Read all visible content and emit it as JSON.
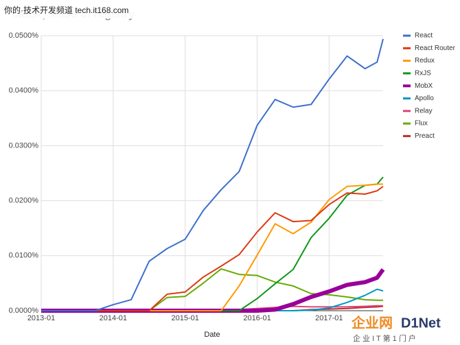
{
  "chart_data": {
    "type": "line",
    "title": "MobX, share of registry",
    "x_label": "Date",
    "watermark": "你的·技术开发频道 tech.it168.com",
    "logo": "企业网",
    "logo_brand": "D1Net",
    "logo_tagline": "企 业 I T 第 1 门 户",
    "x": [
      "2013-01",
      "2013-04",
      "2013-07",
      "2013-10",
      "2014-01",
      "2014-04",
      "2014-07",
      "2014-10",
      "2015-01",
      "2015-04",
      "2015-07",
      "2015-10",
      "2016-01",
      "2016-04",
      "2016-07",
      "2016-10",
      "2017-01",
      "2017-04",
      "2017-07",
      "2017-09",
      "2017-10"
    ],
    "xlim": [
      "2013-01",
      "2017-10"
    ],
    "xticks": [
      "2013-01",
      "2014-01",
      "2015-01",
      "2016-01",
      "2017-01"
    ],
    "ylim": [
      0,
      0.05
    ],
    "yticks": [
      {
        "value": 0,
        "label": "0.0000%"
      },
      {
        "value": 0.01,
        "label": "0.0100%"
      },
      {
        "value": 0.02,
        "label": "0.0200%"
      },
      {
        "value": 0.03,
        "label": "0.0300%"
      },
      {
        "value": 0.04,
        "label": "0.0400%"
      },
      {
        "value": 0.05,
        "label": "0.0500%"
      }
    ],
    "grid": true,
    "legend": "right",
    "series": [
      {
        "name": "React",
        "color": "#3d6fcc",
        "values": [
          0,
          0,
          0,
          0,
          0.0011,
          0.002,
          0.009,
          0.0113,
          0.013,
          0.0182,
          0.022,
          0.0253,
          0.0337,
          0.0384,
          0.037,
          0.0375,
          0.0421,
          0.0463,
          0.044,
          0.0452,
          0.0494
        ]
      },
      {
        "name": "React Router",
        "color": "#dc3912",
        "values": [
          0,
          0,
          0,
          0,
          0,
          0,
          0,
          0.003,
          0.0034,
          0.0061,
          0.0081,
          0.0102,
          0.0143,
          0.0178,
          0.0162,
          0.0164,
          0.0193,
          0.0214,
          0.0212,
          0.0218,
          0.0226
        ]
      },
      {
        "name": "Redux",
        "color": "#ff9900",
        "values": [
          0,
          0,
          0,
          0,
          0,
          0,
          0,
          0,
          0,
          0,
          0,
          0.0045,
          0.0101,
          0.0158,
          0.014,
          0.0161,
          0.0202,
          0.0226,
          0.0228,
          0.023,
          0.023
        ]
      },
      {
        "name": "RxJS",
        "color": "#109618",
        "values": [
          0,
          0,
          0,
          0,
          0,
          0,
          0,
          0,
          0,
          0,
          0,
          0,
          0.0022,
          0.0049,
          0.0075,
          0.0133,
          0.0168,
          0.021,
          0.0228,
          0.023,
          0.0243
        ]
      },
      {
        "name": "MobX",
        "color": "#990099",
        "width": 6,
        "values": [
          0,
          0,
          0,
          0,
          0,
          0,
          0,
          0,
          0,
          0,
          0,
          0,
          0,
          0.0002,
          0.0012,
          0.0025,
          0.0035,
          0.0047,
          0.0052,
          0.006,
          0.0075
        ]
      },
      {
        "name": "Apollo",
        "color": "#0099c6",
        "values": [
          0,
          0,
          0,
          0,
          0,
          0,
          0,
          0,
          0,
          0,
          0,
          0,
          0,
          0,
          0,
          0.0001,
          0.0005,
          0.0015,
          0.0028,
          0.0039,
          0.0036
        ]
      },
      {
        "name": "Relay",
        "color": "#dd4477",
        "values": [
          0,
          0,
          0,
          0,
          0,
          0,
          0,
          0,
          0,
          0,
          0,
          0.0002,
          0.0004,
          0.0006,
          0.0008,
          0.0007,
          0.0007,
          0.0007,
          0.0008,
          0.0009,
          0.0009
        ]
      },
      {
        "name": "Flux",
        "color": "#66aa00",
        "values": [
          0,
          0,
          0,
          0,
          0,
          0,
          0,
          0.0024,
          0.0026,
          0.005,
          0.0076,
          0.0066,
          0.0064,
          0.0052,
          0.0045,
          0.0031,
          0.0029,
          0.0025,
          0.002,
          0.0019,
          0.0019
        ]
      },
      {
        "name": "Preact",
        "color": "#b82e2e",
        "values": [
          0,
          0,
          0,
          0,
          0,
          0,
          0,
          0,
          0,
          0,
          0,
          0,
          0,
          0,
          0,
          0.0002,
          0.0003,
          0.0004,
          0.0006,
          0.0007,
          0.0008
        ]
      }
    ]
  }
}
